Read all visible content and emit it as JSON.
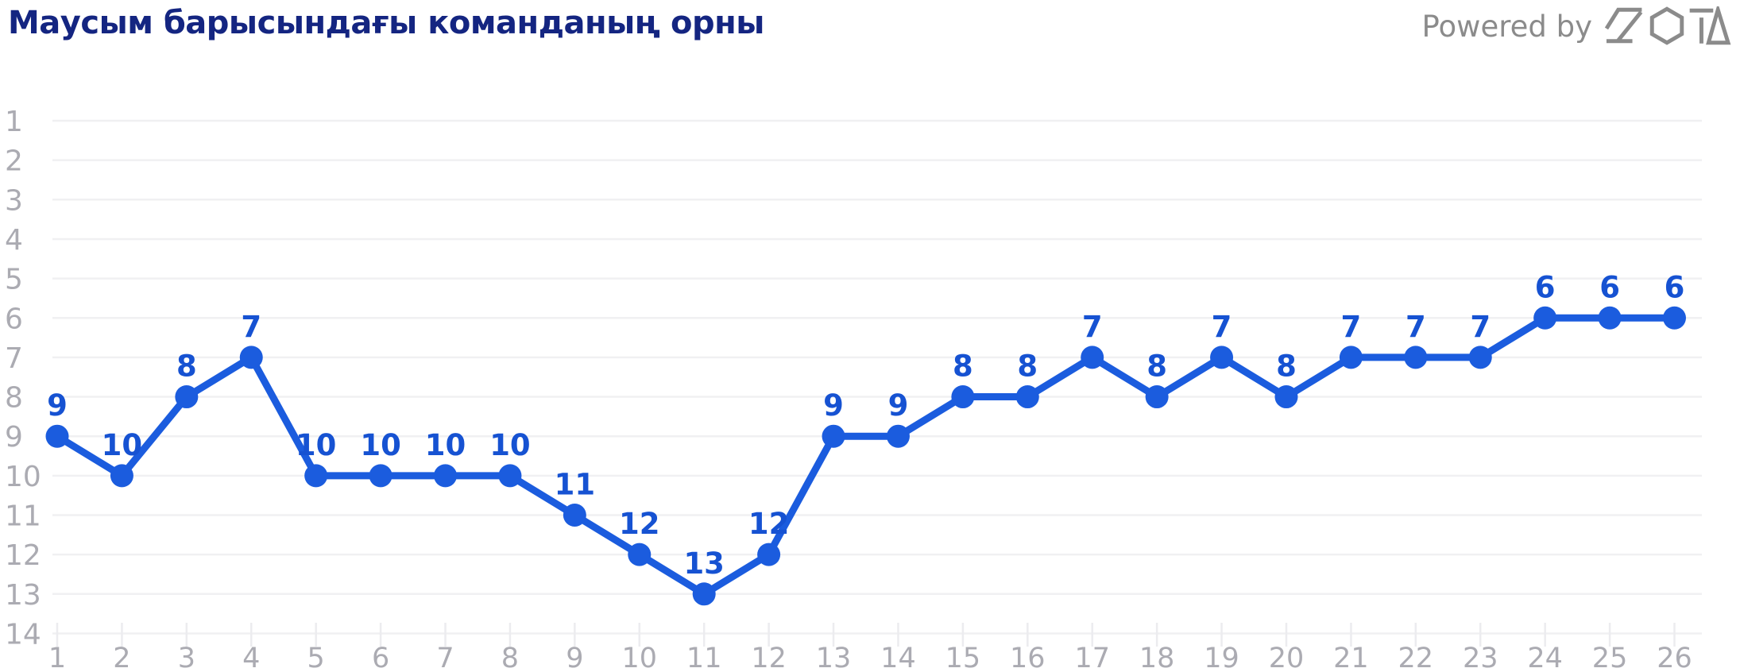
{
  "header": {
    "title": "Маусым барысындағы команданың орны",
    "powered_by": "Powered by",
    "brand": "SOTA"
  },
  "chart_data": {
    "type": "line",
    "title": "Маусым барысындағы команданың орны",
    "series_name": "team-position-by-round",
    "x": [
      1,
      2,
      3,
      4,
      5,
      6,
      7,
      8,
      9,
      10,
      11,
      12,
      13,
      14,
      15,
      16,
      17,
      18,
      19,
      20,
      21,
      22,
      23,
      24,
      25,
      26
    ],
    "values": [
      9,
      10,
      8,
      7,
      10,
      10,
      10,
      10,
      11,
      12,
      13,
      12,
      9,
      9,
      8,
      8,
      7,
      8,
      7,
      8,
      7,
      7,
      7,
      6,
      6,
      6
    ],
    "xlabel": "",
    "ylabel": "",
    "y_ticks": [
      1,
      2,
      3,
      4,
      5,
      6,
      7,
      8,
      9,
      10,
      11,
      12,
      13,
      14
    ],
    "ylim": [
      1,
      14
    ],
    "xlim": [
      1,
      26
    ],
    "y_inverted": true,
    "grid": true,
    "data_labels": true,
    "legend": "none",
    "colors": {
      "line": "#1B5CDE",
      "point": "#1B5CDE",
      "data_label": "#1652D2",
      "axis_label": "#ABABB2",
      "grid": "#F0F0F2",
      "tick": "#ECECEF",
      "title": "#142581",
      "powered_by": "#8B8B8B"
    }
  }
}
